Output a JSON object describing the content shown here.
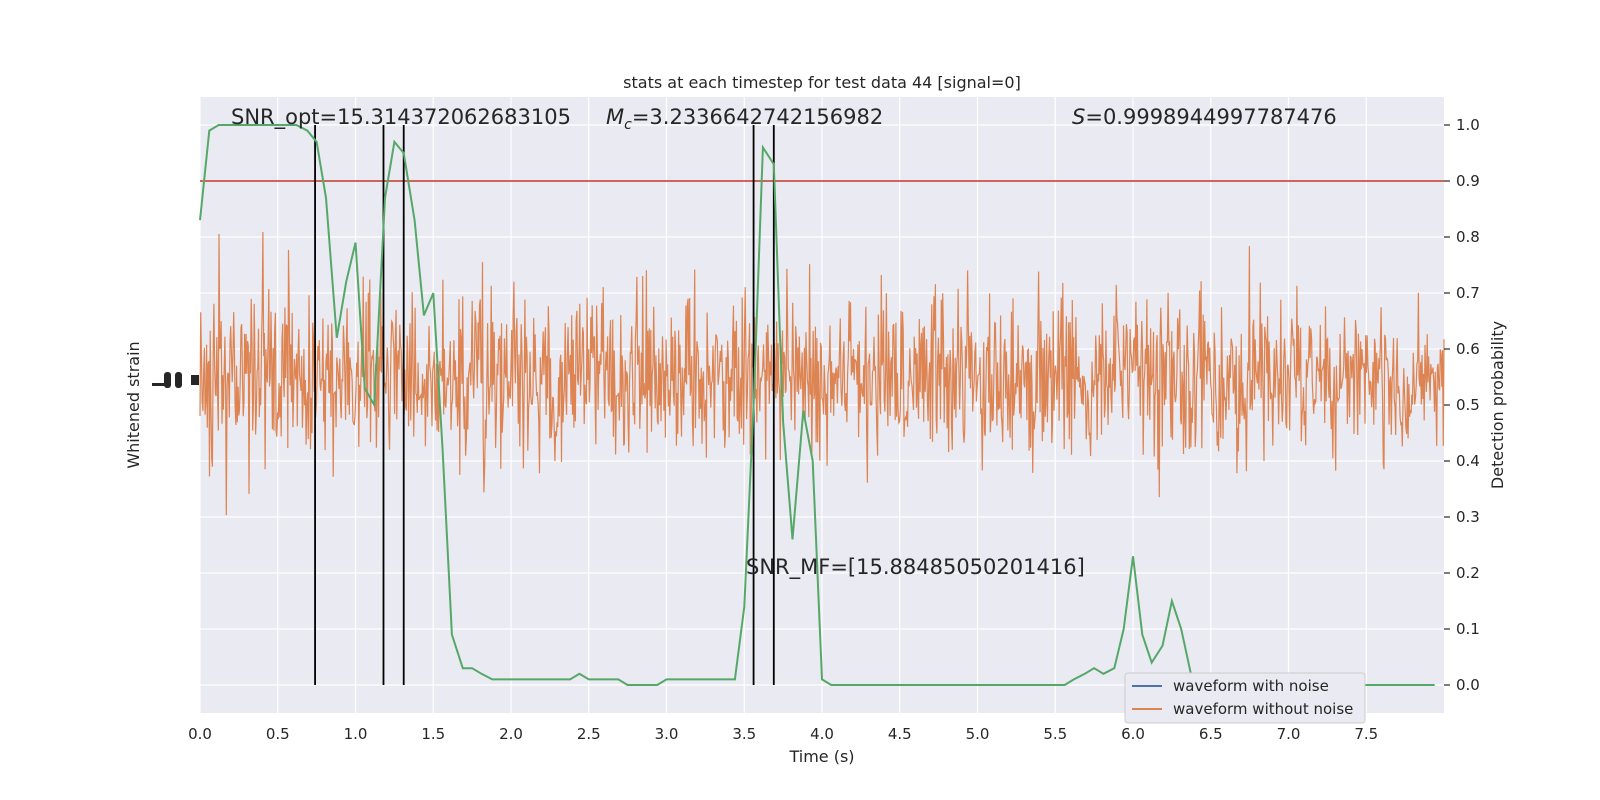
{
  "chart_data": {
    "type": "line",
    "title": "stats at each timestep for test data 44 [signal=0]",
    "xlabel": "Time (s)",
    "ylabel_left": "Whitened strain",
    "ylabel_right": "Detection probability",
    "xlim": [
      0,
      8
    ],
    "ylim_right": [
      -0.05,
      1.05
    ],
    "x_ticks": [
      "0.0",
      "0.5",
      "1.0",
      "1.5",
      "2.0",
      "2.5",
      "3.0",
      "3.5",
      "4.0",
      "4.5",
      "5.0",
      "5.5",
      "6.0",
      "6.5",
      "7.0",
      "7.5"
    ],
    "x_tick_values": [
      0,
      0.5,
      1,
      1.5,
      2,
      2.5,
      3,
      3.5,
      4,
      4.5,
      5,
      5.5,
      6,
      6.5,
      7,
      7.5
    ],
    "y_ticks_right": [
      "0.0",
      "0.1",
      "0.2",
      "0.3",
      "0.4",
      "0.5",
      "0.6",
      "0.7",
      "0.8",
      "0.9",
      "1.0"
    ],
    "y_tick_values_right": [
      0,
      0.1,
      0.2,
      0.3,
      0.4,
      0.5,
      0.6,
      0.7,
      0.8,
      0.9,
      1.0
    ],
    "grid": true,
    "legend_position": "bottom-right",
    "annotations": {
      "snr_opt": "SNR_opt=15.314372062683105",
      "mc_symbol": "M",
      "mc_sub": "c",
      "mc_value": "=3.2336642742156982",
      "s_symbol": "S",
      "s_value": "=0.9998944997787476",
      "snr_mf": "SNR_MF=[15.88485050201416]"
    },
    "threshold": {
      "value": 0.9,
      "color": "#c0392b"
    },
    "vertical_lines_x": [
      0.74,
      1.18,
      1.31,
      3.56,
      3.69
    ],
    "detection_probability": {
      "color": "#55a868",
      "x": [
        0.0,
        0.06,
        0.12,
        0.19,
        0.25,
        0.31,
        0.38,
        0.44,
        0.5,
        0.56,
        0.62,
        0.69,
        0.75,
        0.81,
        0.88,
        0.94,
        1.0,
        1.06,
        1.12,
        1.19,
        1.25,
        1.31,
        1.38,
        1.44,
        1.5,
        1.56,
        1.62,
        1.69,
        1.75,
        1.81,
        1.88,
        1.94,
        2.0,
        2.06,
        2.12,
        2.19,
        2.25,
        2.31,
        2.38,
        2.44,
        2.5,
        2.56,
        2.62,
        2.69,
        2.75,
        2.81,
        2.88,
        2.94,
        3.0,
        3.06,
        3.12,
        3.19,
        3.25,
        3.31,
        3.38,
        3.44,
        3.5,
        3.56,
        3.62,
        3.69,
        3.75,
        3.81,
        3.88,
        3.94,
        4.0,
        4.06,
        4.12,
        4.19,
        4.25,
        4.31,
        4.38,
        4.44,
        4.5,
        4.56,
        4.62,
        4.69,
        4.75,
        4.81,
        4.88,
        4.94,
        5.0,
        5.06,
        5.12,
        5.19,
        5.25,
        5.31,
        5.38,
        5.44,
        5.5,
        5.56,
        5.62,
        5.69,
        5.75,
        5.81,
        5.88,
        5.94,
        6.0,
        6.06,
        6.12,
        6.19,
        6.25,
        6.31,
        6.38,
        6.44,
        6.5,
        6.56,
        6.62,
        6.69,
        6.75,
        6.81,
        6.88,
        6.94,
        7.0,
        7.06,
        7.12,
        7.19,
        7.25,
        7.31,
        7.38,
        7.44,
        7.5,
        7.56,
        7.62,
        7.69,
        7.75,
        7.81,
        7.88,
        7.94
      ],
      "y": [
        0.83,
        0.99,
        1.0,
        1.0,
        1.0,
        1.0,
        1.0,
        1.0,
        1.0,
        1.0,
        1.0,
        0.99,
        0.97,
        0.87,
        0.62,
        0.72,
        0.79,
        0.53,
        0.5,
        0.87,
        0.97,
        0.95,
        0.83,
        0.66,
        0.7,
        0.42,
        0.09,
        0.03,
        0.03,
        0.02,
        0.01,
        0.01,
        0.01,
        0.01,
        0.01,
        0.01,
        0.01,
        0.01,
        0.01,
        0.02,
        0.01,
        0.01,
        0.01,
        0.01,
        0.0,
        0.0,
        0.0,
        0.0,
        0.01,
        0.01,
        0.01,
        0.01,
        0.01,
        0.01,
        0.01,
        0.01,
        0.14,
        0.5,
        0.96,
        0.93,
        0.47,
        0.26,
        0.49,
        0.4,
        0.01,
        0.0,
        0.0,
        0.0,
        0.0,
        0.0,
        0.0,
        0.0,
        0.0,
        0.0,
        0.0,
        0.0,
        0.0,
        0.0,
        0.0,
        0.0,
        0.0,
        0.0,
        0.0,
        0.0,
        0.0,
        0.0,
        0.0,
        0.0,
        0.0,
        0.0,
        0.01,
        0.02,
        0.03,
        0.02,
        0.03,
        0.1,
        0.23,
        0.09,
        0.04,
        0.07,
        0.15,
        0.1,
        0.01,
        0.0,
        0.0,
        0.0,
        0.0,
        0.0,
        0.0,
        0.0,
        0.0,
        0.0,
        0.0,
        0.0,
        0.0,
        0.0,
        0.0,
        0.0,
        0.0,
        0.0,
        0.0,
        0.0,
        0.0,
        0.0,
        0.0,
        0.0,
        0.0,
        0.0
      ]
    },
    "series": [
      {
        "name": "waveform with noise",
        "color": "#4c72b0"
      },
      {
        "name": "waveform without noise",
        "color": "#dd8452"
      }
    ]
  }
}
